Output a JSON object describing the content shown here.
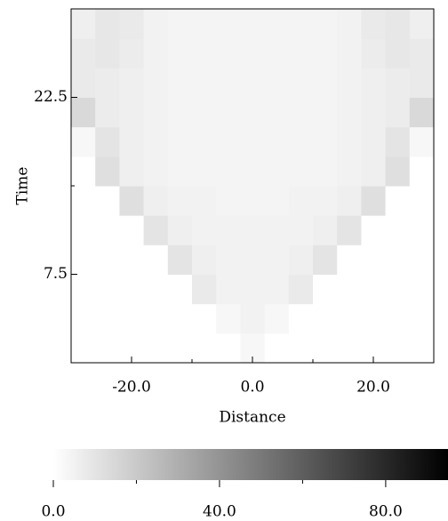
{
  "chart_data": {
    "type": "heatmap",
    "xlabel": "Distance",
    "ylabel": "Time",
    "xbins": [
      -30,
      -26,
      -22,
      -18,
      -14,
      -10,
      -6,
      -2,
      2,
      6,
      10,
      14,
      18,
      22,
      26,
      30
    ],
    "ybins": [
      0,
      2.5,
      5,
      7.5,
      10,
      12.5,
      15,
      17.5,
      20,
      22.5,
      25,
      27.5,
      30
    ],
    "values": [
      [
        0,
        0,
        0,
        0,
        0,
        0,
        0,
        3,
        0,
        0,
        0,
        0,
        0,
        0,
        0
      ],
      [
        0,
        0,
        0,
        0,
        0,
        0,
        3,
        5,
        3,
        0,
        0,
        0,
        0,
        0,
        0
      ],
      [
        0,
        0,
        0,
        0,
        0,
        8,
        5,
        5,
        5,
        8,
        0,
        0,
        0,
        0,
        0
      ],
      [
        0,
        0,
        0,
        0,
        10,
        6,
        5,
        5,
        5,
        6,
        10,
        0,
        0,
        0,
        0
      ],
      [
        0,
        0,
        0,
        10,
        6,
        5,
        5,
        5,
        5,
        5,
        6,
        10,
        0,
        0,
        0
      ],
      [
        0,
        0,
        12,
        6,
        5,
        5,
        4,
        4,
        4,
        5,
        5,
        6,
        12,
        0,
        0
      ],
      [
        0,
        12,
        6,
        5,
        4,
        4,
        4,
        4,
        4,
        4,
        4,
        5,
        6,
        12,
        0
      ],
      [
        3,
        10,
        6,
        5,
        4,
        4,
        4,
        4,
        4,
        4,
        4,
        5,
        6,
        10,
        3
      ],
      [
        14,
        7,
        6,
        5,
        4,
        4,
        4,
        4,
        4,
        4,
        4,
        5,
        6,
        7,
        14
      ],
      [
        8,
        7,
        6,
        5,
        4,
        4,
        4,
        4,
        4,
        4,
        4,
        5,
        6,
        7,
        8
      ],
      [
        8,
        9,
        7,
        5,
        4,
        4,
        4,
        4,
        4,
        4,
        4,
        5,
        7,
        9,
        8
      ],
      [
        6,
        9,
        8,
        5,
        4,
        4,
        4,
        4,
        4,
        4,
        4,
        5,
        8,
        9,
        6
      ]
    ],
    "xlim": [
      -30,
      30
    ],
    "ylim": [
      0,
      30
    ],
    "xticks": [
      {
        "value": -20,
        "label": "-20.0"
      },
      {
        "value": 0,
        "label": "0.0"
      },
      {
        "value": 20,
        "label": "20.0"
      }
    ],
    "xminorticks": [
      -10,
      10
    ],
    "yticks": [
      7.5,
      22.5
    ],
    "yminorticks": [
      15
    ],
    "colormap": "gray",
    "clim": [
      0,
      95
    ],
    "cticks": [
      {
        "value": 0,
        "label": "0.0"
      },
      {
        "value": 40,
        "label": "40.0"
      },
      {
        "value": 80,
        "label": "80.0"
      }
    ],
    "cminorticks": [
      20,
      60
    ]
  }
}
